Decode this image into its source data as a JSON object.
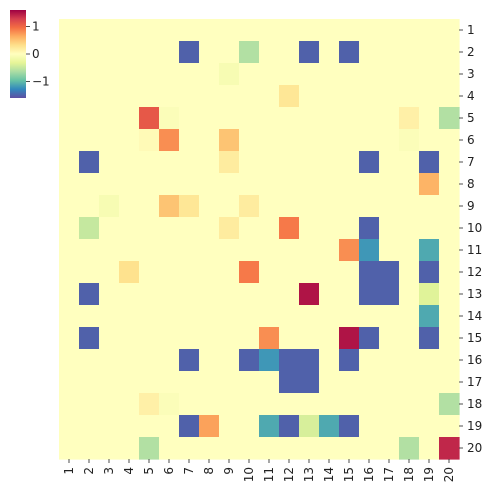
{
  "chart_data": {
    "type": "heatmap",
    "title": "",
    "xlabel": "",
    "ylabel": "",
    "x_tick_labels": [
      "1",
      "2",
      "3",
      "4",
      "5",
      "6",
      "7",
      "8",
      "9",
      "10",
      "11",
      "12",
      "13",
      "14",
      "15",
      "16",
      "17",
      "18",
      "19",
      "20"
    ],
    "y_tick_labels": [
      "1",
      "2",
      "3",
      "4",
      "5",
      "6",
      "7",
      "8",
      "9",
      "10",
      "11",
      "12",
      "13",
      "14",
      "15",
      "16",
      "17",
      "18",
      "19",
      "20"
    ],
    "y_axis_side": "right",
    "colorbar": {
      "colormap": "Spectral",
      "vmin": -1.6,
      "vmax": 1.6,
      "ticks": [
        1,
        0,
        -1
      ],
      "tick_labels": [
        "1",
        "0",
        "−1"
      ],
      "placement": "top-left"
    },
    "values": [
      [
        0,
        0,
        0,
        0,
        0,
        0,
        0,
        0,
        0,
        0,
        0,
        0,
        0,
        0,
        0,
        0,
        0,
        0,
        0,
        0
      ],
      [
        0,
        0,
        0,
        0,
        0,
        0,
        -1.5,
        0,
        0,
        -0.6,
        0,
        0,
        -1.5,
        0,
        -1.5,
        0,
        0,
        0,
        0,
        0
      ],
      [
        0,
        0,
        0,
        0,
        0,
        0,
        0,
        0,
        -0.1,
        0,
        0,
        0,
        0,
        0,
        0,
        0,
        0,
        0,
        0,
        0
      ],
      [
        0,
        0,
        0,
        0,
        0,
        0,
        0,
        0,
        0,
        0,
        0,
        0.25,
        0,
        0,
        0,
        0,
        0,
        0,
        0,
        0
      ],
      [
        0,
        0,
        0,
        0,
        1.1,
        -0.05,
        0,
        0,
        0,
        0,
        0,
        0,
        0,
        0,
        0,
        0,
        0,
        0.15,
        0,
        -0.6
      ],
      [
        0,
        0,
        0,
        0,
        0.05,
        0.8,
        0,
        0,
        0.5,
        0,
        0,
        0,
        0,
        0,
        0,
        0,
        0,
        -0.05,
        0,
        0
      ],
      [
        0,
        -1.5,
        0,
        0,
        0,
        0,
        0,
        0,
        0.2,
        0,
        0,
        0,
        0,
        0,
        0,
        -1.5,
        0,
        0,
        -1.5,
        0
      ],
      [
        0,
        0,
        0,
        0,
        0,
        0,
        0,
        0,
        0,
        0,
        0,
        0,
        0,
        0,
        0,
        0,
        0,
        0,
        0.6,
        0
      ],
      [
        0,
        0,
        -0.1,
        0,
        0,
        0.5,
        0.25,
        0,
        0,
        0.2,
        0,
        0,
        0,
        0,
        0,
        0,
        0,
        0,
        0,
        0
      ],
      [
        0,
        -0.5,
        0,
        0,
        0,
        0,
        0,
        0,
        0.2,
        0,
        0,
        0.9,
        0,
        0,
        0,
        -1.5,
        0,
        0,
        0,
        0
      ],
      [
        0,
        0,
        0,
        0,
        0,
        0,
        0,
        0,
        0,
        0,
        0,
        0,
        0,
        0,
        0.8,
        -1.2,
        0,
        0,
        -1.1,
        0
      ],
      [
        0,
        0,
        0,
        0.3,
        0,
        0,
        0,
        0,
        0,
        0.9,
        0,
        0,
        0,
        0,
        0,
        -1.5,
        -1.5,
        0,
        -1.5,
        0
      ],
      [
        0,
        -1.5,
        0,
        0,
        0,
        0,
        0,
        0,
        0,
        0,
        0,
        0,
        1.5,
        0,
        0,
        -1.5,
        -1.5,
        0,
        -0.35,
        0
      ],
      [
        0,
        0,
        0,
        0,
        0,
        0,
        0,
        0,
        0,
        0,
        0,
        0,
        0,
        0,
        0,
        0,
        0,
        0,
        -1.1,
        0
      ],
      [
        0,
        -1.5,
        0,
        0,
        0,
        0,
        0,
        0,
        0,
        0,
        0.8,
        0,
        0,
        0,
        1.5,
        -1.5,
        0,
        0,
        -1.5,
        0
      ],
      [
        0,
        0,
        0,
        0,
        0,
        0,
        -1.5,
        0,
        0,
        -1.5,
        -1.2,
        -1.5,
        -1.5,
        0,
        -1.5,
        0,
        0,
        0,
        0,
        0
      ],
      [
        0,
        0,
        0,
        0,
        0,
        0,
        0,
        0,
        0,
        0,
        0,
        -1.5,
        -1.5,
        0,
        0,
        0,
        0,
        0,
        0,
        0
      ],
      [
        0,
        0,
        0,
        0,
        0.15,
        -0.05,
        0,
        0,
        0,
        0,
        0,
        0,
        0,
        0,
        0,
        0,
        0,
        0,
        0,
        -0.6
      ],
      [
        0,
        0,
        0,
        0,
        0,
        0,
        -1.5,
        0.7,
        0,
        0,
        -1.1,
        -1.5,
        -0.4,
        -1.1,
        -1.5,
        0,
        0,
        0,
        0,
        0
      ],
      [
        0,
        0,
        0,
        0,
        -0.6,
        0,
        0,
        0,
        0,
        0,
        0,
        0,
        0,
        0,
        0,
        0,
        0,
        -0.6,
        0,
        1.4
      ]
    ]
  }
}
